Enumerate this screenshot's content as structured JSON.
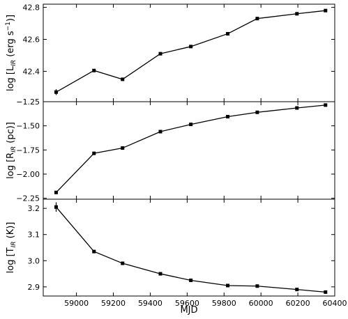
{
  "chart_data": [
    {
      "type": "line",
      "ylabel": {
        "pre": "log [L",
        "sub": "IR",
        "post": " (erg s",
        "sup": "−1",
        "end": ")]"
      },
      "ylim": [
        42.21,
        42.82
      ],
      "yticks": [
        42.4,
        42.6,
        42.8
      ],
      "ytick_labels": [
        "42.4",
        "42.6",
        "42.8"
      ],
      "x": [
        58890,
        59095,
        59250,
        59455,
        59620,
        59820,
        59980,
        60195,
        60350
      ],
      "y": [
        42.27,
        42.405,
        42.35,
        42.51,
        42.555,
        42.635,
        42.73,
        42.76,
        42.78
      ],
      "yerr": [
        0.018,
        0.006,
        0.006,
        0.006,
        0.006,
        0.006,
        0.006,
        0.006,
        0.006
      ]
    },
    {
      "type": "line",
      "ylabel": {
        "pre": "log [R",
        "sub": "IR",
        "post": " (pc)]",
        "sup": "",
        "end": ""
      },
      "ylim": [
        -2.26,
        -1.25
      ],
      "yticks": [
        -1.25,
        -1.5,
        -1.75,
        -2.0,
        -2.25
      ],
      "ytick_labels": [
        "−1.25",
        "−1.50",
        "−1.75",
        "−2.00",
        "−2.25"
      ],
      "x": [
        58890,
        59095,
        59250,
        59455,
        59620,
        59820,
        59980,
        60195,
        60350
      ],
      "y": [
        -2.19,
        -1.785,
        -1.73,
        -1.56,
        -1.485,
        -1.405,
        -1.36,
        -1.315,
        -1.285
      ],
      "yerr": [
        0.015,
        0.008,
        0.008,
        0.008,
        0.008,
        0.008,
        0.008,
        0.008,
        0.008
      ]
    },
    {
      "type": "line",
      "ylabel": {
        "pre": "log [T",
        "sub": "IR",
        "post": " (K)]",
        "sup": "",
        "end": ""
      },
      "ylim": [
        2.865,
        3.235
      ],
      "yticks": [
        2.9,
        3.0,
        3.1,
        3.2
      ],
      "ytick_labels": [
        "2.9",
        "3.0",
        "3.1",
        "3.2"
      ],
      "x": [
        58890,
        59095,
        59250,
        59455,
        59620,
        59820,
        59980,
        60195,
        60350
      ],
      "y": [
        3.205,
        3.035,
        2.99,
        2.95,
        2.925,
        2.905,
        2.903,
        2.89,
        2.88
      ],
      "yerr": [
        0.018,
        0.004,
        0.004,
        0.004,
        0.004,
        0.004,
        0.004,
        0.004,
        0.004
      ]
    }
  ],
  "shared_x": {
    "xlabel": "MJD",
    "xlim": [
      58820,
      60400
    ],
    "xticks": [
      59000,
      59200,
      59400,
      59600,
      59800,
      60000,
      60200,
      60400
    ],
    "xtick_labels": [
      "59000",
      "59200",
      "59400",
      "59600",
      "59800",
      "60000",
      "60200",
      "60400"
    ]
  }
}
